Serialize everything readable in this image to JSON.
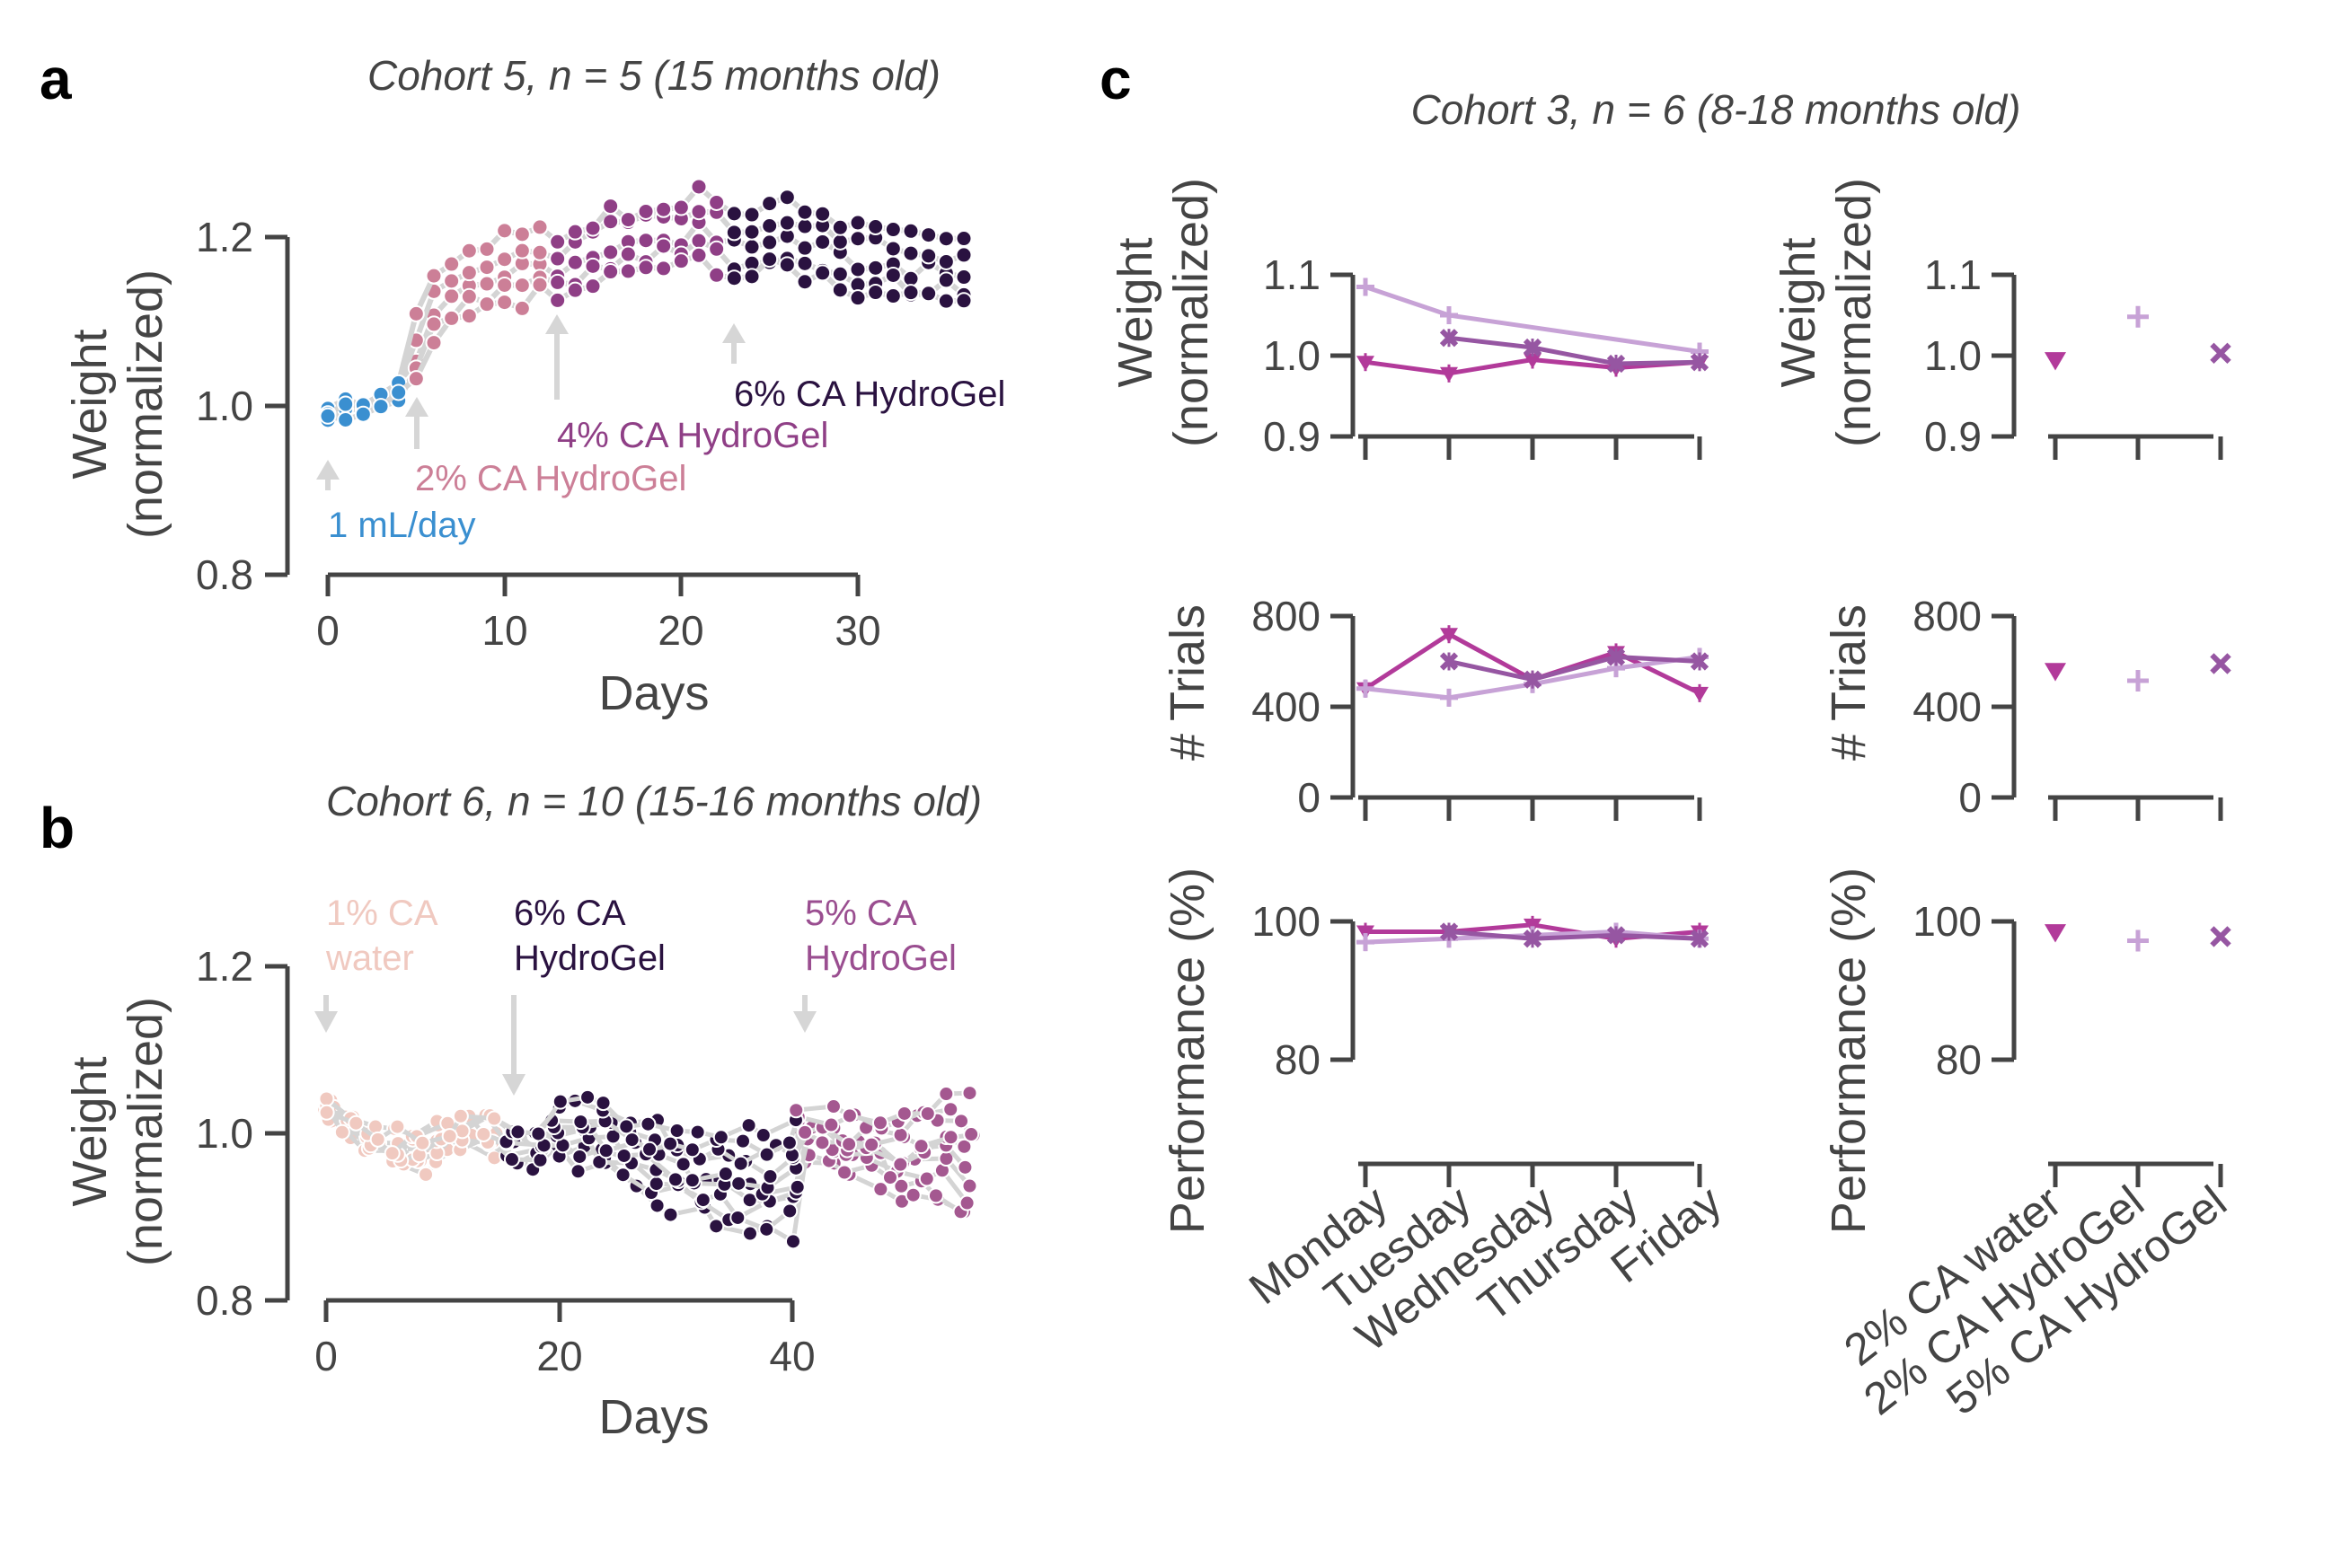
{
  "panels": {
    "a": {
      "letter": "a",
      "title": "Cohort 5, n = 5 (15 months old)",
      "ylabel_line1": "Weight",
      "ylabel_line2": "(normalized)",
      "xlabel": "Days",
      "yticks": [
        "0.8",
        "1.0",
        "1.2"
      ],
      "xticks": [
        "0",
        "10",
        "20",
        "30"
      ],
      "annotations": [
        {
          "text": "1 mL/day",
          "color": "#3a8fd0"
        },
        {
          "text": "2% CA HydroGel",
          "color": "#cc7f97"
        },
        {
          "text": "4% CA HydroGel",
          "color": "#8f3f86"
        },
        {
          "text": "6% CA HydroGel",
          "color": "#2a1240"
        }
      ]
    },
    "b": {
      "letter": "b",
      "title": "Cohort 6, n = 10 (15-16 months old)",
      "ylabel_line1": "Weight",
      "ylabel_line2": "(normalized)",
      "xlabel": "Days",
      "yticks": [
        "0.8",
        "1.0",
        "1.2"
      ],
      "xticks": [
        "0",
        "20",
        "40"
      ],
      "annotations": [
        {
          "line1": "1% CA",
          "line2": "water",
          "color": "#f0c9c0"
        },
        {
          "line1": "6% CA",
          "line2": "HydroGel",
          "color": "#2a1240"
        },
        {
          "line1": "5% CA",
          "line2": "HydroGel",
          "color": "#9a4e90"
        }
      ]
    },
    "c": {
      "letter": "c",
      "title": "Cohort 3, n = 6 (8-18 months old)",
      "weight_label_line1": "Weight",
      "weight_label_line2": "(normalized)",
      "weight_yticks": [
        "0.9",
        "1.0",
        "1.1"
      ],
      "trials_label": "# Trials",
      "trials_yticks": [
        "0",
        "400",
        "800"
      ],
      "perf_label": "Performance (%)",
      "perf_yticks": [
        "80",
        "100"
      ],
      "days": [
        "Monday",
        "Tuesday",
        "Wednesday",
        "Thursday",
        "Friday"
      ],
      "conditions": [
        "2% CA water",
        "2% CA HydroGel",
        "5% CA HydroGel"
      ]
    }
  },
  "colors": {
    "water_2pct": "#b23a9a",
    "hydrogel_2pct": "#c7a2d6",
    "hydrogel_5pct": "#9656a2",
    "baseline": "#3a8fd0",
    "hg2_a": "#cc7f97",
    "hg4_a": "#8f3f86",
    "hg6": "#2a1240",
    "water1_b": "#f0c9c0",
    "hg5_b": "#a45890",
    "connector": "#d4d4d4"
  },
  "chart_data": [
    {
      "type": "line",
      "title": "Cohort 5, n = 5 (15 months old)",
      "xlabel": "Days",
      "ylabel": "Weight (normalized)",
      "xlim": [
        -2,
        37
      ],
      "ylim": [
        0.8,
        1.3
      ],
      "series": [
        {
          "name": "1 mL/day",
          "x": [
            0,
            1,
            2,
            3,
            4
          ],
          "values": [
            0.99,
            0.995,
            1.0,
            1.005,
            1.02
          ]
        },
        {
          "name": "2% CA HydroGel",
          "x": [
            5,
            6,
            7,
            8,
            9,
            10,
            11,
            12
          ],
          "values": [
            1.06,
            1.11,
            1.13,
            1.14,
            1.15,
            1.16,
            1.16,
            1.17
          ]
        },
        {
          "name": "4% CA HydroGel",
          "x": [
            13,
            14,
            15,
            16,
            17,
            18,
            19,
            20,
            21,
            22
          ],
          "values": [
            1.16,
            1.17,
            1.18,
            1.19,
            1.19,
            1.2,
            1.2,
            1.2,
            1.21,
            1.2
          ]
        },
        {
          "name": "6% CA HydroGel",
          "x": [
            23,
            24,
            25,
            26,
            27,
            28,
            29,
            30,
            31,
            32,
            33,
            34,
            35,
            36
          ],
          "values": [
            1.19,
            1.19,
            1.2,
            1.2,
            1.19,
            1.19,
            1.18,
            1.17,
            1.17,
            1.17,
            1.16,
            1.16,
            1.16,
            1.15
          ]
        }
      ]
    },
    {
      "type": "line",
      "title": "Cohort 6, n = 10 (15-16 months old)",
      "xlabel": "Days",
      "ylabel": "Weight (normalized)",
      "xlim": [
        -3,
        56
      ],
      "ylim": [
        0.8,
        1.2
      ],
      "series": [
        {
          "name": "1% CA water",
          "x": [
            0,
            2,
            4,
            6,
            8,
            10,
            12,
            14
          ],
          "values": [
            1.03,
            1.01,
            0.99,
            0.98,
            0.98,
            0.99,
            1.0,
            1.0
          ]
        },
        {
          "name": "6% CA HydroGel",
          "x": [
            16,
            18,
            20,
            22,
            24,
            26,
            28,
            30,
            32,
            34,
            36,
            38,
            40
          ],
          "values": [
            0.99,
            0.99,
            1.0,
            1.0,
            0.99,
            0.98,
            0.97,
            0.96,
            0.95,
            0.95,
            0.94,
            0.94,
            0.95
          ]
        },
        {
          "name": "5% CA HydroGel",
          "x": [
            41,
            43,
            45,
            47,
            49,
            51,
            53,
            55
          ],
          "values": [
            1.0,
            0.99,
            0.98,
            0.98,
            0.97,
            0.98,
            0.98,
            0.97
          ]
        }
      ]
    },
    {
      "type": "line",
      "ylabel": "Weight (normalized)",
      "categories": [
        "Monday",
        "Tuesday",
        "Wednesday",
        "Thursday",
        "Friday"
      ],
      "ylim": [
        0.9,
        1.1
      ],
      "series": [
        {
          "name": "2% CA water",
          "values": [
            0.992,
            0.978,
            0.995,
            0.985,
            0.992
          ]
        },
        {
          "name": "2% CA HydroGel",
          "values": [
            1.085,
            1.05,
            null,
            null,
            1.005
          ]
        },
        {
          "name": "5% CA HydroGel",
          "values": [
            null,
            1.022,
            1.01,
            0.99,
            0.992
          ]
        }
      ]
    },
    {
      "type": "scatter",
      "ylabel": "Weight (normalized)",
      "categories": [
        "2% CA water",
        "2% CA HydroGel",
        "5% CA HydroGel"
      ],
      "ylim": [
        0.9,
        1.1
      ],
      "values": [
        0.995,
        1.048,
        1.003
      ]
    },
    {
      "type": "line",
      "ylabel": "# Trials",
      "categories": [
        "Monday",
        "Tuesday",
        "Wednesday",
        "Thursday",
        "Friday"
      ],
      "ylim": [
        0,
        800
      ],
      "series": [
        {
          "name": "2% CA water",
          "values": [
            480,
            720,
            520,
            640,
            460
          ]
        },
        {
          "name": "2% CA HydroGel",
          "values": [
            480,
            440,
            500,
            570,
            620
          ]
        },
        {
          "name": "5% CA HydroGel",
          "values": [
            null,
            600,
            520,
            620,
            600
          ]
        }
      ]
    },
    {
      "type": "scatter",
      "ylabel": "# Trials",
      "categories": [
        "2% CA water",
        "2% CA HydroGel",
        "5% CA HydroGel"
      ],
      "ylim": [
        0,
        800
      ],
      "values": [
        560,
        515,
        590
      ]
    },
    {
      "type": "line",
      "ylabel": "Performance (%)",
      "categories": [
        "Monday",
        "Tuesday",
        "Wednesday",
        "Thursday",
        "Friday"
      ],
      "ylim": [
        65,
        105
      ],
      "series": [
        {
          "name": "2% CA water",
          "values": [
            98.5,
            98.5,
            99.5,
            97.5,
            98.5
          ]
        },
        {
          "name": "2% CA HydroGel",
          "values": [
            97.0,
            97.5,
            98.0,
            98.5,
            97.5
          ]
        },
        {
          "name": "5% CA HydroGel",
          "values": [
            null,
            98.5,
            97.5,
            98.0,
            97.5
          ]
        }
      ]
    },
    {
      "type": "scatter",
      "ylabel": "Performance (%)",
      "categories": [
        "2% CA water",
        "2% CA HydroGel",
        "5% CA HydroGel"
      ],
      "ylim": [
        65,
        105
      ],
      "values": [
        98.5,
        97.2,
        97.8
      ]
    }
  ]
}
